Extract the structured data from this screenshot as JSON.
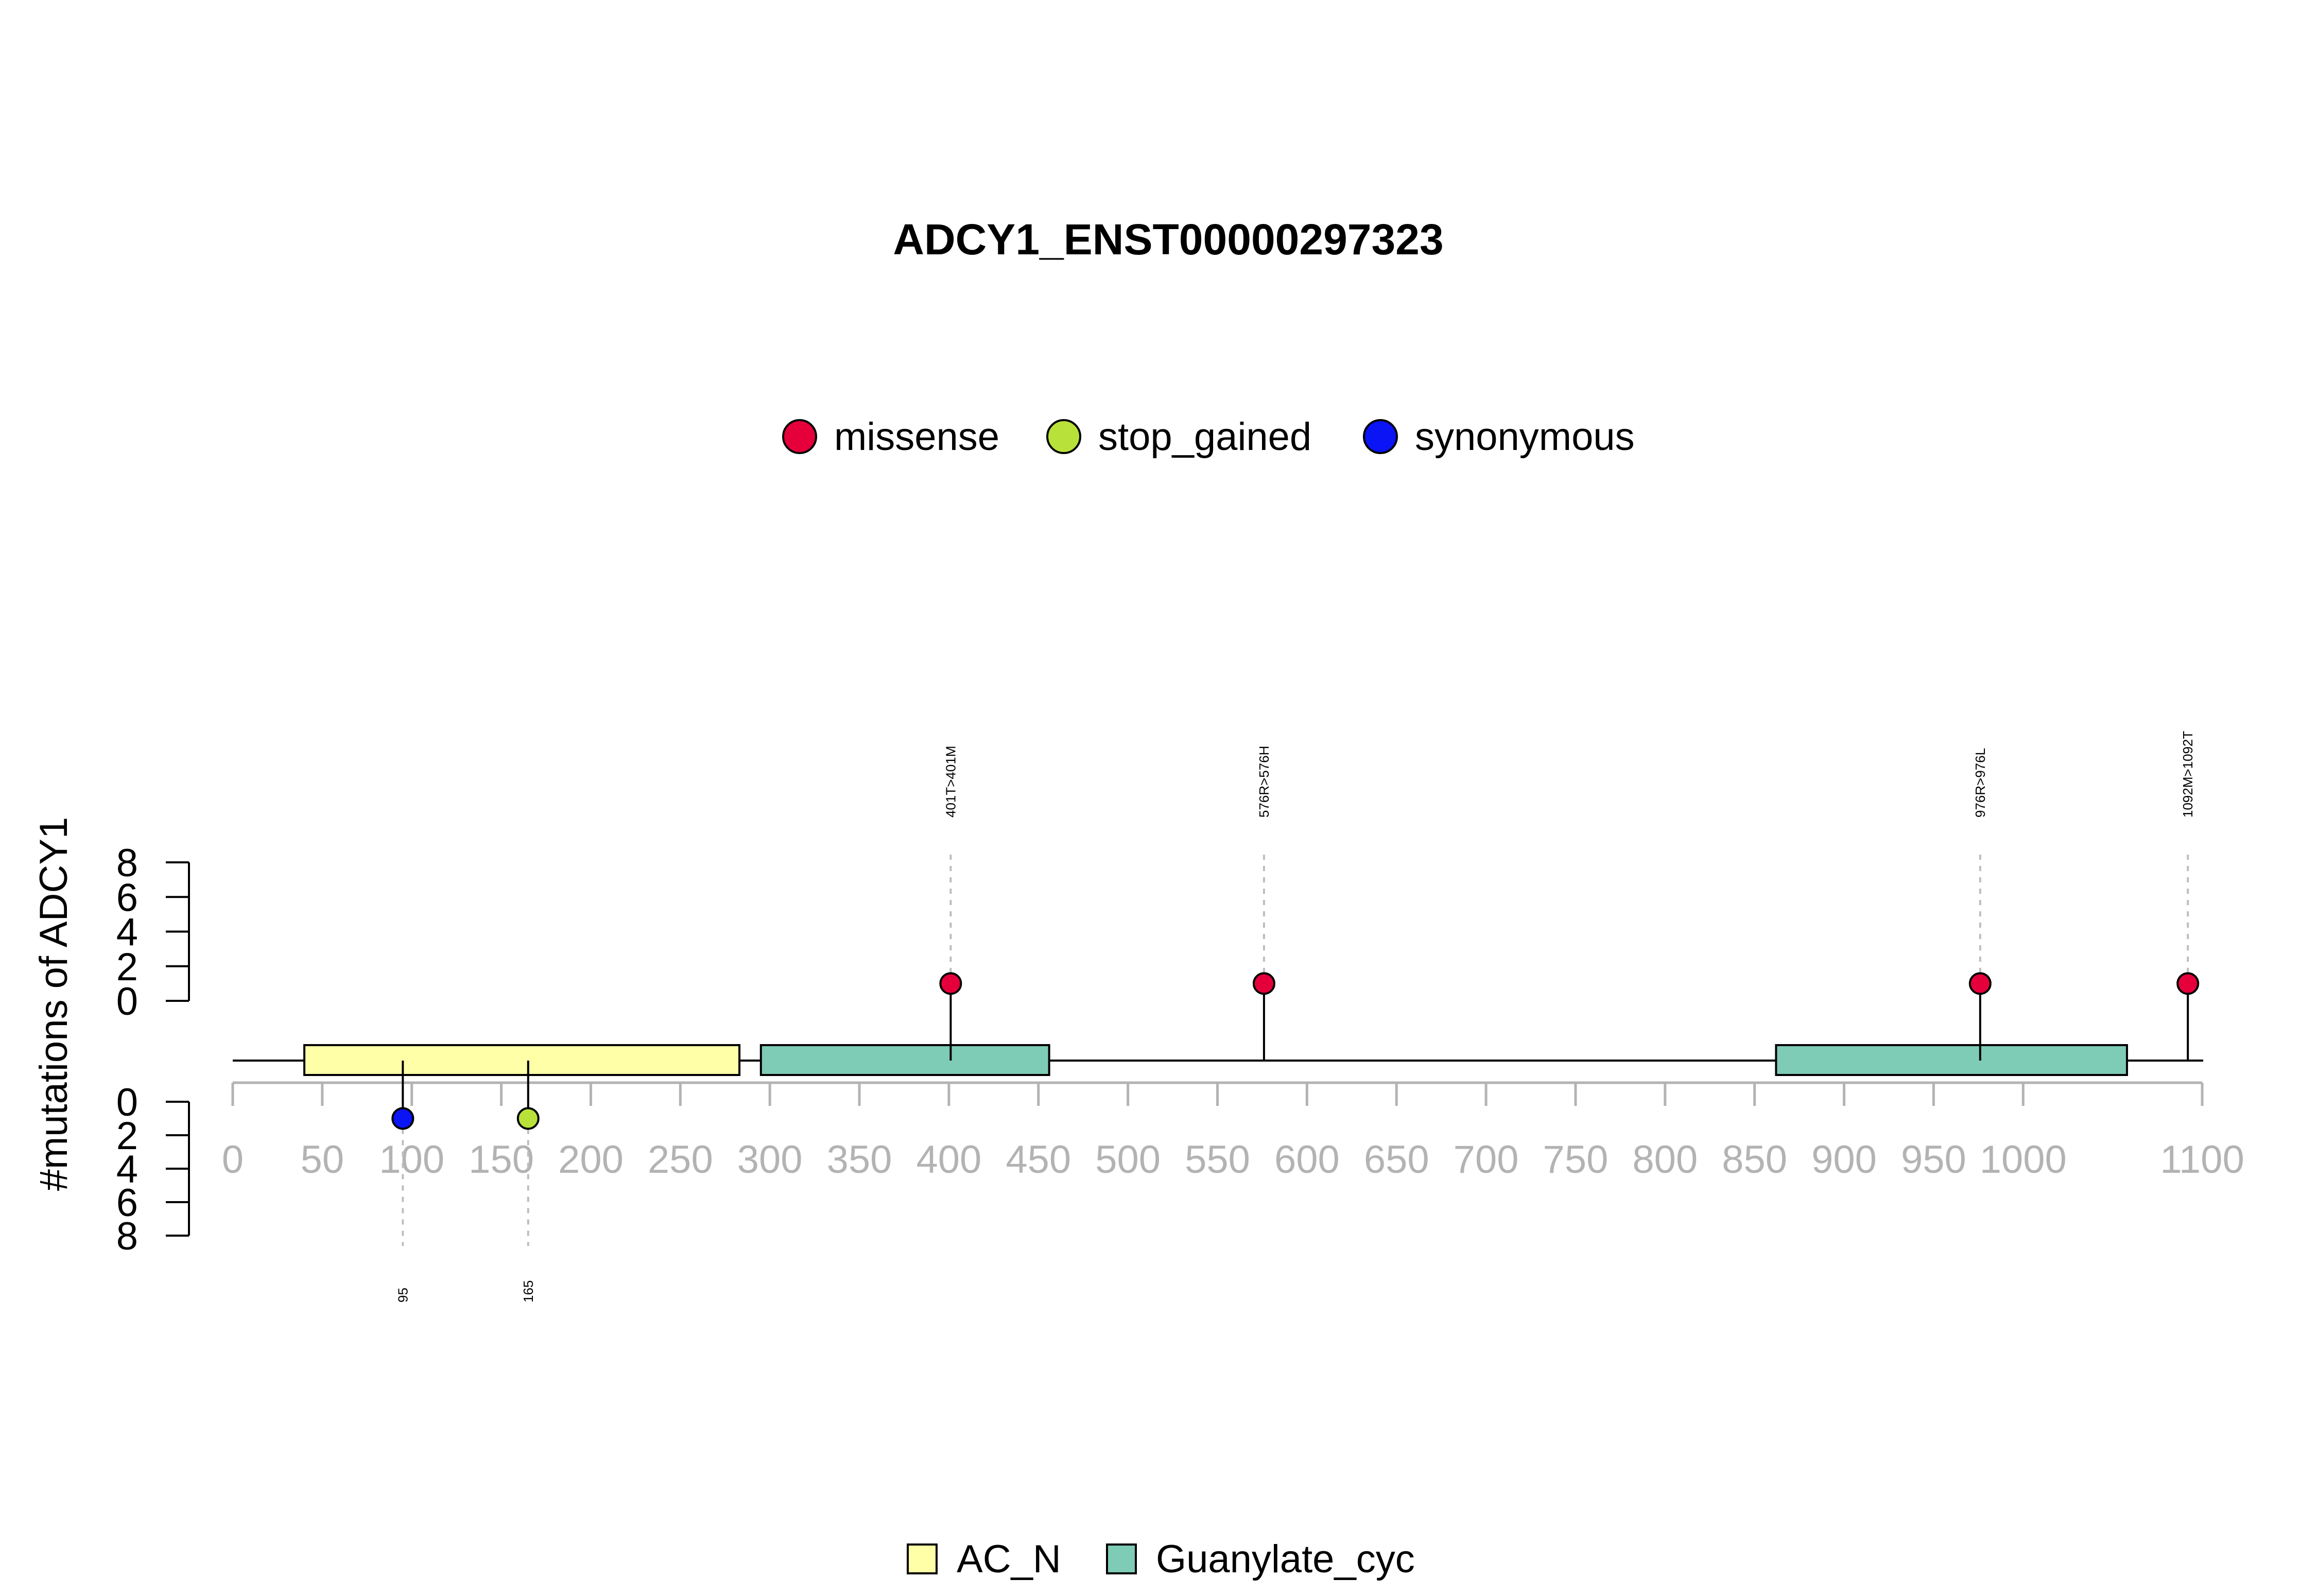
{
  "chart_data": {
    "type": "lollipop",
    "title": "ADCY1_ENST00000297323",
    "ylabel": "#mutations of ADCY1",
    "xlim": [
      0,
      1100
    ],
    "x_ticks": [
      "0",
      "50",
      "100",
      "150",
      "200",
      "250",
      "300",
      "350",
      "400",
      "450",
      "500",
      "550",
      "600",
      "650",
      "700",
      "750",
      "800",
      "850",
      "900",
      "950",
      "1000",
      "1100"
    ],
    "upper_y_ticks": [
      "0",
      "2",
      "4",
      "6",
      "8"
    ],
    "lower_y_ticks": [
      "0",
      "2",
      "4",
      "6",
      "8"
    ],
    "ylim": [
      0,
      8
    ],
    "mutation_legend": [
      {
        "label": "missense",
        "color": "#e5003c"
      },
      {
        "label": "stop_gained",
        "color": "#b8e23a"
      },
      {
        "label": "synonymous",
        "color": "#0a14f5"
      }
    ],
    "domain_legend": [
      {
        "label": "AC_N",
        "color": "#ffffa8"
      },
      {
        "label": "Guanylate_cyc",
        "color": "#7ecbb6"
      }
    ],
    "domains": [
      {
        "name": "AC_N",
        "start": 40,
        "end": 283,
        "color": "#ffffa8"
      },
      {
        "name": "Guanylate_cyc",
        "start": 295,
        "end": 456,
        "color": "#7ecbb6"
      },
      {
        "name": "Guanylate_cyc",
        "start": 862,
        "end": 1058,
        "color": "#7ecbb6"
      }
    ],
    "mutations_above": [
      {
        "position": 401,
        "count": 1,
        "type": "missense",
        "label": "401T>401M"
      },
      {
        "position": 576,
        "count": 1,
        "type": "missense",
        "label": "576R>576H"
      },
      {
        "position": 976,
        "count": 1,
        "type": "missense",
        "label": "976R>976L"
      },
      {
        "position": 1092,
        "count": 1,
        "type": "missense",
        "label": "1092M>1092T"
      }
    ],
    "mutations_below": [
      {
        "position": 95,
        "count": 1,
        "type": "synonymous",
        "label": "95"
      },
      {
        "position": 165,
        "count": 1,
        "type": "stop_gained",
        "label": "165"
      }
    ]
  }
}
